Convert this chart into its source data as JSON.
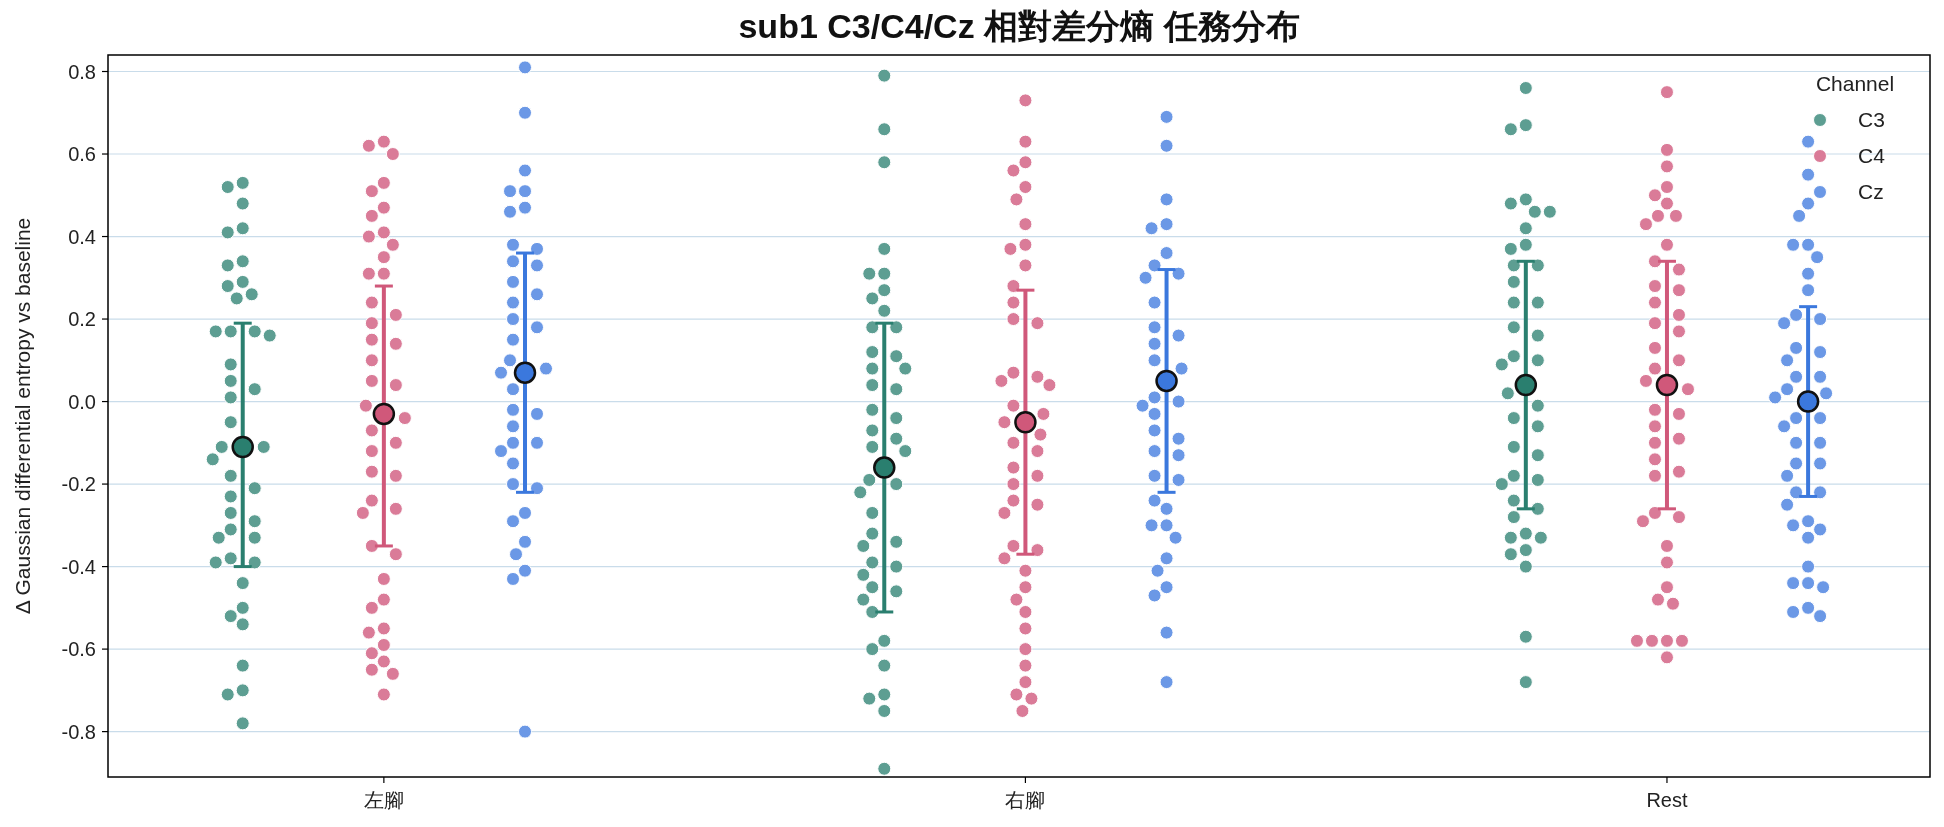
{
  "chart_data": {
    "type": "scatter",
    "title": "sub1 C3/C4/Cz 相對差分熵 任務分布",
    "ylabel": "Δ Gaussian differential entropy vs baseline",
    "legend_title": "Channel",
    "legend": "top right",
    "grid": "y",
    "marker": "circle",
    "categories": [
      "左腳",
      "右腳",
      "Rest"
    ],
    "ylim": [
      -0.91,
      0.84
    ],
    "yticks": [
      {
        "value": -0.8,
        "label": "-0.8"
      },
      {
        "value": -0.6,
        "label": "-0.6"
      },
      {
        "value": -0.4,
        "label": "-0.4"
      },
      {
        "value": -0.2,
        "label": "-0.2"
      },
      {
        "value": 0,
        "label": "0.0"
      },
      {
        "value": 0.2,
        "label": "0.2"
      },
      {
        "value": 0.4,
        "label": "0.4"
      },
      {
        "value": 0.6,
        "label": "0.6"
      },
      {
        "value": 0.8,
        "label": "0.8"
      }
    ],
    "series": [
      {
        "name": "C3",
        "color": "#5d9e92",
        "x": [
          "左腳",
          "左腳",
          "左腳",
          "左腳",
          "左腳",
          "左腳",
          "左腳",
          "左腳",
          "左腳",
          "左腳",
          "左腳",
          "左腳",
          "左腳",
          "左腳",
          "左腳",
          "左腳",
          "左腳",
          "左腳",
          "左腳",
          "左腳",
          "左腳",
          "左腳",
          "左腳",
          "左腳",
          "左腳",
          "左腳",
          "左腳",
          "左腳",
          "左腳",
          "左腳",
          "左腳",
          "左腳",
          "左腳",
          "左腳",
          "左腳",
          "左腳",
          "左腳",
          "左腳",
          "左腳",
          "左腳",
          "左腳",
          "左腳",
          "右腳",
          "右腳",
          "右腳",
          "右腳",
          "右腳",
          "右腳",
          "右腳",
          "右腳",
          "右腳",
          "右腳",
          "右腳",
          "右腳",
          "右腳",
          "右腳",
          "右腳",
          "右腳",
          "右腳",
          "右腳",
          "右腳",
          "右腳",
          "右腳",
          "右腳",
          "右腳",
          "右腳",
          "右腳",
          "右腳",
          "右腳",
          "右腳",
          "右腳",
          "右腳",
          "右腳",
          "右腳",
          "右腳",
          "右腳",
          "右腳",
          "右腳",
          "右腳",
          "右腳",
          "右腳",
          "右腳",
          "右腳",
          "右腳",
          "右腳",
          "右腳",
          "Rest",
          "Rest",
          "Rest",
          "Rest",
          "Rest",
          "Rest",
          "Rest",
          "Rest",
          "Rest",
          "Rest",
          "Rest",
          "Rest",
          "Rest",
          "Rest",
          "Rest",
          "Rest",
          "Rest",
          "Rest",
          "Rest",
          "Rest",
          "Rest",
          "Rest",
          "Rest",
          "Rest",
          "Rest",
          "Rest",
          "Rest",
          "Rest",
          "Rest",
          "Rest",
          "Rest",
          "Rest",
          "Rest",
          "Rest",
          "Rest",
          "Rest",
          "Rest",
          "Rest",
          "Rest",
          "Rest"
        ],
        "values": [
          0.53,
          0.52,
          0.48,
          0.42,
          0.41,
          0.34,
          0.33,
          0.28,
          0.25,
          0.26,
          0.29,
          0.16,
          0.17,
          0.17,
          0.17,
          0.05,
          0.03,
          0.01,
          0.09,
          -0.05,
          -0.14,
          -0.11,
          -0.11,
          -0.21,
          -0.23,
          -0.27,
          -0.33,
          -0.31,
          -0.29,
          -0.39,
          -0.38,
          -0.39,
          -0.44,
          -0.54,
          -0.5,
          -0.52,
          -0.64,
          -0.71,
          -0.7,
          -0.78,
          -0.33,
          -0.18,
          0.79,
          0.66,
          0.58,
          0.37,
          0.31,
          0.31,
          0.27,
          0.25,
          0.22,
          0.18,
          0.18,
          0.12,
          0.11,
          0.08,
          0.08,
          0.03,
          0.04,
          -0.02,
          -0.04,
          -0.07,
          -0.09,
          -0.12,
          -0.11,
          -0.19,
          -0.2,
          -0.22,
          -0.27,
          -0.34,
          -0.32,
          -0.35,
          -0.4,
          -0.39,
          -0.42,
          -0.45,
          -0.51,
          -0.48,
          -0.46,
          -0.58,
          -0.6,
          -0.64,
          -0.71,
          -0.75,
          -0.72,
          -0.89,
          0.76,
          0.67,
          0.66,
          0.46,
          0.48,
          0.49,
          0.46,
          0.42,
          0.38,
          0.37,
          0.33,
          0.33,
          0.29,
          0.24,
          0.24,
          0.18,
          0.16,
          0.11,
          0.09,
          0.1,
          0.02,
          -0.01,
          -0.04,
          -0.06,
          -0.11,
          -0.13,
          -0.18,
          -0.19,
          -0.2,
          -0.24,
          -0.26,
          -0.28,
          -0.32,
          -0.33,
          -0.33,
          -0.37,
          -0.36,
          -0.4,
          -0.57,
          -0.68
        ]
      },
      {
        "name": "C4",
        "color": "#da7b98",
        "x": [
          "左腳",
          "左腳",
          "左腳",
          "左腳",
          "左腳",
          "左腳",
          "左腳",
          "左腳",
          "左腳",
          "左腳",
          "左腳",
          "左腳",
          "左腳",
          "左腳",
          "左腳",
          "左腳",
          "左腳",
          "左腳",
          "左腳",
          "左腳",
          "左腳",
          "左腳",
          "左腳",
          "左腳",
          "左腳",
          "左腳",
          "左腳",
          "左腳",
          "左腳",
          "左腳",
          "左腳",
          "左腳",
          "左腳",
          "左腳",
          "左腳",
          "左腳",
          "左腳",
          "左腳",
          "左腳",
          "左腳",
          "左腳",
          "左腳",
          "左腳",
          "左腳",
          "右腳",
          "右腳",
          "右腳",
          "右腳",
          "右腳",
          "右腳",
          "右腳",
          "右腳",
          "右腳",
          "右腳",
          "右腳",
          "右腳",
          "右腳",
          "右腳",
          "右腳",
          "右腳",
          "右腳",
          "右腳",
          "右腳",
          "右腳",
          "右腳",
          "右腳",
          "右腳",
          "右腳",
          "右腳",
          "右腳",
          "右腳",
          "右腳",
          "右腳",
          "右腳",
          "右腳",
          "右腳",
          "右腳",
          "右腳",
          "右腳",
          "右腳",
          "右腳",
          "右腳",
          "右腳",
          "右腳",
          "右腳",
          "右腳",
          "右腳",
          "右腳",
          "Rest",
          "Rest",
          "Rest",
          "Rest",
          "Rest",
          "Rest",
          "Rest",
          "Rest",
          "Rest",
          "Rest",
          "Rest",
          "Rest",
          "Rest",
          "Rest",
          "Rest",
          "Rest",
          "Rest",
          "Rest",
          "Rest",
          "Rest",
          "Rest",
          "Rest",
          "Rest",
          "Rest",
          "Rest",
          "Rest",
          "Rest",
          "Rest",
          "Rest",
          "Rest",
          "Rest",
          "Rest",
          "Rest",
          "Rest",
          "Rest",
          "Rest",
          "Rest",
          "Rest",
          "Rest",
          "Rest",
          "Rest",
          "Rest",
          "Rest",
          "Rest"
        ],
        "values": [
          0.63,
          0.6,
          0.62,
          0.53,
          0.51,
          0.45,
          0.47,
          0.4,
          0.38,
          0.41,
          0.35,
          0.31,
          0.31,
          0.1,
          0.24,
          0.21,
          0.19,
          0.14,
          0.15,
          0.05,
          0.04,
          -0.01,
          -0.04,
          -0.07,
          -0.1,
          -0.12,
          -0.17,
          -0.18,
          -0.26,
          -0.24,
          -0.27,
          -0.35,
          -0.37,
          -0.43,
          -0.5,
          -0.48,
          -0.55,
          -0.56,
          -0.59,
          -0.61,
          -0.71,
          -0.66,
          -0.63,
          -0.65,
          0.73,
          0.63,
          0.56,
          0.58,
          0.52,
          0.49,
          0.43,
          0.38,
          0.37,
          0.33,
          0.28,
          0.24,
          0.2,
          0.19,
          0.05,
          0.04,
          0.06,
          0.07,
          -0.01,
          -0.03,
          -0.05,
          -0.08,
          -0.1,
          -0.12,
          -0.16,
          -0.18,
          -0.2,
          -0.25,
          -0.27,
          -0.24,
          -0.36,
          -0.35,
          -0.38,
          -0.45,
          -0.51,
          -0.48,
          -0.41,
          -0.55,
          -0.6,
          -0.68,
          -0.71,
          -0.75,
          -0.72,
          -0.64,
          0.75,
          0.61,
          0.57,
          0.52,
          0.5,
          0.45,
          0.45,
          0.48,
          0.43,
          0.38,
          0.34,
          0.32,
          0.28,
          0.27,
          0.24,
          0.21,
          0.19,
          0.17,
          0.13,
          0.1,
          0.08,
          0.05,
          0.03,
          -0.03,
          -0.02,
          -0.06,
          -0.1,
          -0.09,
          -0.14,
          -0.17,
          -0.18,
          -0.27,
          -0.28,
          -0.29,
          -0.35,
          -0.39,
          -0.45,
          -0.48,
          -0.49,
          -0.58,
          -0.58,
          -0.58,
          -0.62,
          -0.58
        ]
      },
      {
        "name": "Cz",
        "color": "#6b98e6",
        "x": [
          "左腳",
          "左腳",
          "左腳",
          "左腳",
          "左腳",
          "左腳",
          "左腳",
          "左腳",
          "左腳",
          "左腳",
          "左腳",
          "左腳",
          "左腳",
          "左腳",
          "左腳",
          "左腳",
          "左腳",
          "左腳",
          "左腳",
          "左腳",
          "左腳",
          "左腳",
          "左腳",
          "左腳",
          "左腳",
          "左腳",
          "左腳",
          "左腳",
          "左腳",
          "左腳",
          "左腳",
          "左腳",
          "左腳",
          "左腳",
          "左腳",
          "左腳",
          "左腳",
          "右腳",
          "右腳",
          "右腳",
          "右腳",
          "右腳",
          "右腳",
          "右腳",
          "右腳",
          "右腳",
          "右腳",
          "右腳",
          "右腳",
          "右腳",
          "右腳",
          "右腳",
          "右腳",
          "右腳",
          "右腳",
          "右腳",
          "右腳",
          "右腳",
          "右腳",
          "右腳",
          "右腳",
          "右腳",
          "右腳",
          "右腳",
          "右腳",
          "右腳",
          "右腳",
          "右腳",
          "右腳",
          "右腳",
          "右腳",
          "右腳",
          "右腳",
          "Rest",
          "Rest",
          "Rest",
          "Rest",
          "Rest",
          "Rest",
          "Rest",
          "Rest",
          "Rest",
          "Rest",
          "Rest",
          "Rest",
          "Rest",
          "Rest",
          "Rest",
          "Rest",
          "Rest",
          "Rest",
          "Rest",
          "Rest",
          "Rest",
          "Rest",
          "Rest",
          "Rest",
          "Rest",
          "Rest",
          "Rest",
          "Rest",
          "Rest",
          "Rest",
          "Rest",
          "Rest",
          "Rest",
          "Rest",
          "Rest",
          "Rest",
          "Rest",
          "Rest",
          "Rest",
          "Rest",
          "Rest",
          "Rest"
        ],
        "values": [
          0.81,
          0.7,
          0.56,
          0.51,
          0.51,
          0.47,
          0.46,
          0.38,
          0.34,
          0.37,
          0.33,
          0.26,
          0.29,
          0.24,
          0.2,
          0.18,
          0.15,
          0.1,
          0.08,
          0.07,
          0.03,
          -0.02,
          -0.03,
          -0.06,
          -0.1,
          -0.15,
          -0.12,
          -0.1,
          -0.2,
          -0.21,
          -0.27,
          -0.29,
          -0.37,
          -0.34,
          -0.41,
          -0.43,
          -0.8,
          0.69,
          0.62,
          0.49,
          0.42,
          0.43,
          0.36,
          0.31,
          0.33,
          0.3,
          0.24,
          0.18,
          0.16,
          0.1,
          0.08,
          0.14,
          -0.03,
          0.01,
          -0.01,
          0.0,
          -0.07,
          -0.09,
          -0.12,
          -0.13,
          -0.19,
          -0.18,
          -0.26,
          -0.24,
          -0.3,
          -0.33,
          -0.3,
          -0.38,
          -0.41,
          -0.45,
          -0.47,
          -0.56,
          -0.68,
          0.63,
          0.55,
          0.45,
          0.48,
          0.38,
          0.38,
          0.35,
          0.31,
          0.27,
          0.21,
          0.2,
          0.19,
          0.12,
          0.13,
          0.1,
          0.06,
          0.06,
          0.03,
          0.02,
          0.01,
          -0.04,
          -0.06,
          -0.04,
          -0.1,
          -0.1,
          -0.15,
          -0.18,
          -0.15,
          -0.22,
          -0.25,
          -0.22,
          -0.29,
          -0.3,
          -0.31,
          -0.33,
          -0.4,
          -0.45,
          -0.44,
          -0.5,
          -0.51,
          -0.52,
          -0.44
        ]
      },
      {
        "color": "#2a7f6f",
        "x": [
          "左腳",
          "右腳",
          "Rest"
        ],
        "values": [
          -0.11,
          -0.16,
          0.04
        ],
        "errors": [
          [
            -0.4,
            0.19
          ],
          [
            -0.51,
            0.19
          ],
          [
            -0.26,
            0.34
          ]
        ]
      },
      {
        "color": "#d0587a",
        "x": [
          "左腳",
          "右腳",
          "Rest"
        ],
        "values": [
          -0.03,
          -0.05,
          0.04
        ],
        "errors": [
          [
            -0.35,
            0.28
          ],
          [
            -0.37,
            0.27
          ],
          [
            -0.26,
            0.34
          ]
        ]
      },
      {
        "color": "#3b78dd",
        "x": [
          "左腳",
          "右腳",
          "Rest"
        ],
        "values": [
          0.07,
          0.05,
          0.0
        ],
        "errors": [
          [
            -0.22,
            0.36
          ],
          [
            -0.22,
            0.32
          ],
          [
            -0.23,
            0.23
          ]
        ]
      }
    ]
  }
}
